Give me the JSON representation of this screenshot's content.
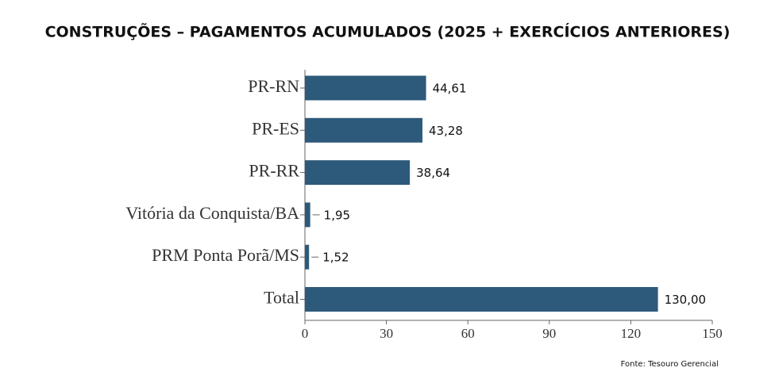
{
  "chart_data": {
    "type": "bar",
    "orientation": "horizontal",
    "title": "CONSTRUÇÕES – PAGAMENTOS ACUMULADOS (2025 + EXERCÍCIOS ANTERIORES)",
    "categories": [
      "PR-RN",
      "PR-ES",
      "PR-RR",
      "Vitória da Conquista/BA",
      "PRM Ponta Porã/MS",
      "Total"
    ],
    "values": [
      44.61,
      43.28,
      38.64,
      1.95,
      1.52,
      130
    ],
    "value_labels": [
      "44,61",
      "43,28",
      "38,64",
      "1,95",
      "1,52",
      "130,00"
    ],
    "color": "#2d5a7b",
    "xlim": [
      0,
      150
    ],
    "xticks": [
      0,
      30,
      60,
      90,
      120,
      150
    ],
    "source": "Fonte: Tesouro Gerencial"
  }
}
